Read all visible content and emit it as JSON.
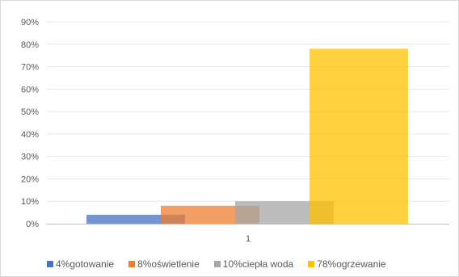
{
  "chart_data": {
    "type": "bar",
    "categories": [
      "1"
    ],
    "series": [
      {
        "name": "4%gotowanie",
        "values": [
          0.04
        ],
        "color": "#4472C4"
      },
      {
        "name": "8%oświetlenie",
        "values": [
          0.08
        ],
        "color": "#ED7D31"
      },
      {
        "name": "10%ciepła woda",
        "values": [
          0.1
        ],
        "color": "#A5A5A5"
      },
      {
        "name": "78%ogrzewanie",
        "values": [
          0.78
        ],
        "color": "#FFC000"
      }
    ],
    "title": "",
    "xlabel": "",
    "ylabel": "",
    "ylim": [
      0,
      0.9
    ],
    "yticks": [
      "0%",
      "10%",
      "20%",
      "30%",
      "40%",
      "50%",
      "60%",
      "70%",
      "80%",
      "90%"
    ],
    "grid": true,
    "legend_position": "bottom"
  }
}
